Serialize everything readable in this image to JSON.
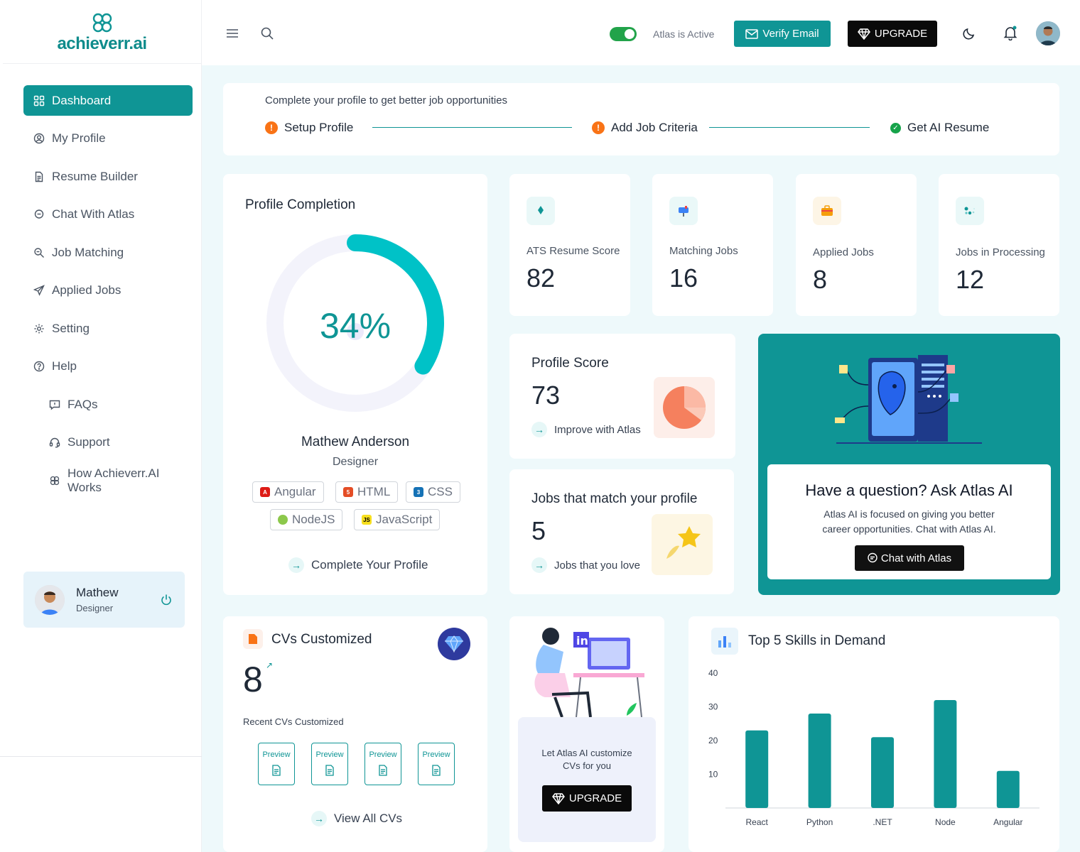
{
  "brand": {
    "name": "achieverr.ai",
    "accent": "#0f9595"
  },
  "sidebar": {
    "items": [
      {
        "label": "Dashboard",
        "icon": "grid-icon",
        "active": true
      },
      {
        "label": "My Profile",
        "icon": "user-circle-icon"
      },
      {
        "label": "Resume Builder",
        "icon": "document-icon"
      },
      {
        "label": "Chat With Atlas",
        "icon": "chat-icon"
      },
      {
        "label": "Job Matching",
        "icon": "search-briefcase-icon"
      },
      {
        "label": "Applied Jobs",
        "icon": "send-icon"
      },
      {
        "label": "Setting",
        "icon": "gear-icon"
      },
      {
        "label": "Help",
        "icon": "question-circle-icon"
      },
      {
        "label": "FAQs",
        "icon": "faq-icon"
      },
      {
        "label": "Support",
        "icon": "headset-icon"
      },
      {
        "label": "How Achieverr.AI Works",
        "icon": "logo-icon"
      }
    ],
    "user": {
      "name": "Mathew",
      "role": "Designer"
    }
  },
  "topbar": {
    "atlas_status": "Atlas is Active",
    "atlas_on": true,
    "verify_label": "Verify Email",
    "upgrade_label": "UPGRADE"
  },
  "steps": {
    "title": "Complete your profile to get better job opportunities",
    "items": [
      {
        "label": "Setup Profile",
        "status": "pending"
      },
      {
        "label": "Add Job Criteria",
        "status": "pending"
      },
      {
        "label": "Get AI Resume",
        "status": "done"
      }
    ]
  },
  "profile_completion": {
    "title": "Profile Completion",
    "percent_label": "34%",
    "percent": 0.34,
    "name": "Mathew Anderson",
    "role": "Designer",
    "skills": [
      "Angular",
      "HTML",
      "CSS",
      "NodeJS",
      "JavaScript"
    ],
    "link": "Complete Your Profile"
  },
  "stats": [
    {
      "label": "ATS Resume Score",
      "value": "82"
    },
    {
      "label": "Matching Jobs",
      "value": "16"
    },
    {
      "label": "Applied Jobs",
      "value": "8"
    },
    {
      "label": "Jobs in Processing",
      "value": "12"
    }
  ],
  "profile_score": {
    "title": "Profile Score",
    "value": "73",
    "link": "Improve with Atlas"
  },
  "jobs_match": {
    "title": "Jobs that match your profile",
    "value": "5",
    "link": "Jobs that you love"
  },
  "atlas": {
    "title": "Have a question? Ask Atlas AI",
    "text": "Atlas AI is focused on giving you better career opportunities. Chat with Atlas AI.",
    "button": "Chat with Atlas"
  },
  "cvs": {
    "title": "CVs Customized",
    "value": "8",
    "recent_label": "Recent CVs Customized",
    "previews": [
      "Preview",
      "Preview",
      "Preview",
      "Preview"
    ],
    "link": "View All CVs"
  },
  "promo": {
    "text": "Let Atlas AI customize CVs for you",
    "button": "UPGRADE"
  },
  "chart_data": {
    "type": "bar",
    "title": "Top 5 Skills in Demand",
    "categories": [
      "React",
      "Python",
      ".NET",
      "Node",
      "Angular"
    ],
    "values": [
      23,
      28,
      21,
      32,
      11
    ],
    "yticks": [
      10,
      20,
      30,
      40
    ],
    "ylim": [
      0,
      40
    ],
    "grid": false,
    "color": "#0f9595"
  }
}
